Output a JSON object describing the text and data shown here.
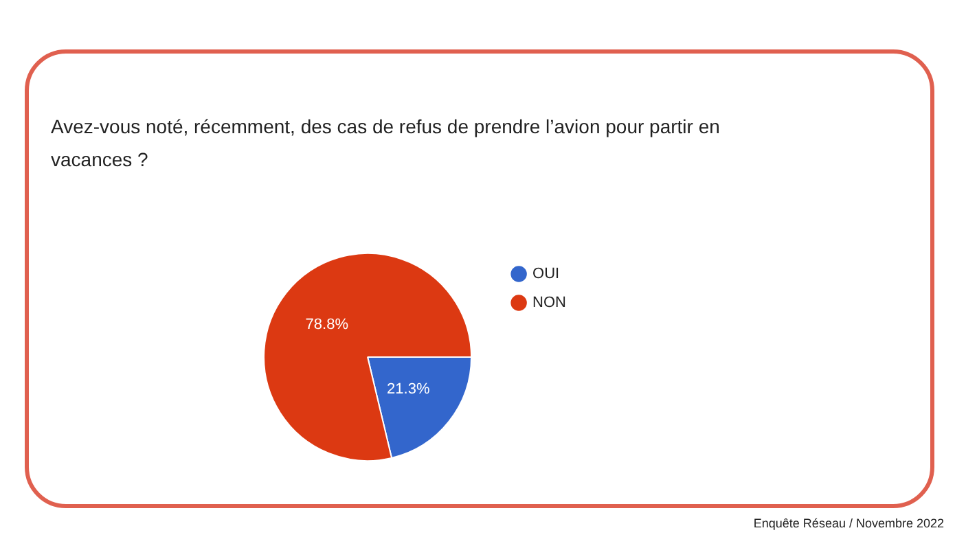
{
  "chart_data": {
    "type": "pie",
    "title": "Avez-vous noté, récemment, des cas de refus de prendre l’avion pour partir en vacances ?",
    "categories": [
      "OUI",
      "NON"
    ],
    "values": [
      21.3,
      78.8
    ],
    "colors": [
      "#3366cc",
      "#dc3912"
    ],
    "value_labels": [
      "21.3%",
      "78.8%"
    ],
    "legend": "right",
    "annotations": [
      "Enquête Réseau / Novembre 2022"
    ]
  }
}
